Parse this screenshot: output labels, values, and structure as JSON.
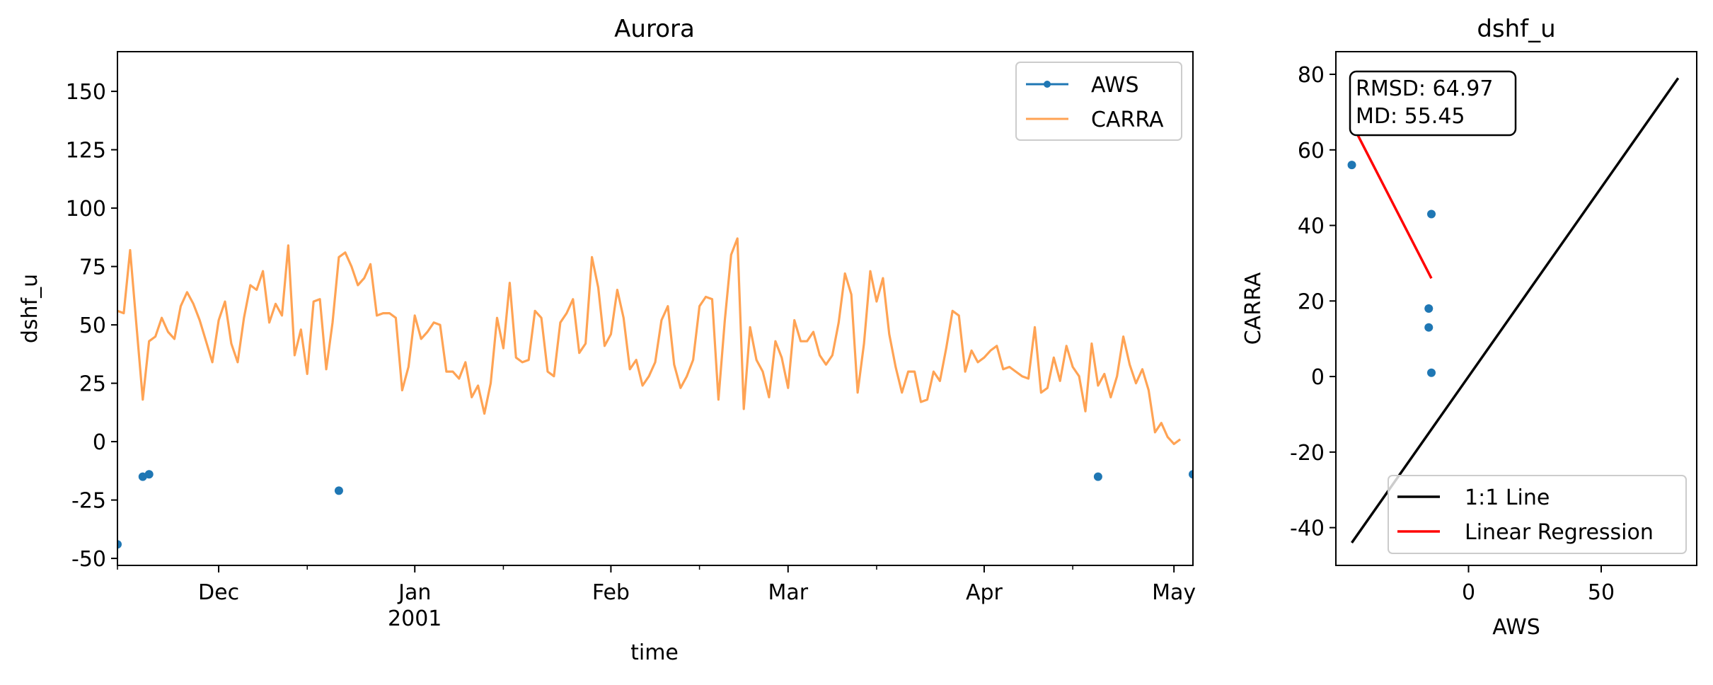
{
  "chart_data": [
    {
      "type": "line",
      "title": "Aurora",
      "xlabel": "time",
      "ylabel": "dshf_u",
      "ylim": [
        -53,
        167
      ],
      "xlim": [
        "2000-11-15",
        "2001-05-04"
      ],
      "x_ticks": [
        {
          "date": "2000-12-01",
          "label": "Dec",
          "sublabel": ""
        },
        {
          "date": "2001-01-01",
          "label": "Jan",
          "sublabel": "2001"
        },
        {
          "date": "2001-02-01",
          "label": "Feb",
          "sublabel": ""
        },
        {
          "date": "2001-03-01",
          "label": "Mar",
          "sublabel": ""
        },
        {
          "date": "2001-04-01",
          "label": "Apr",
          "sublabel": ""
        },
        {
          "date": "2001-05-01",
          "label": "May",
          "sublabel": ""
        }
      ],
      "y_ticks": [
        -50,
        -25,
        0,
        25,
        50,
        75,
        100,
        125,
        150
      ],
      "legend": {
        "position": "top-right",
        "entries": [
          "AWS",
          "CARRA"
        ]
      },
      "series": [
        {
          "name": "AWS",
          "style": "points",
          "color": "#1f77b4",
          "points": [
            [
              "2000-11-15",
              -44
            ],
            [
              "2000-11-19",
              -15
            ],
            [
              "2000-11-20",
              -14
            ],
            [
              "2000-12-20",
              -21
            ],
            [
              "2001-04-19",
              -15
            ],
            [
              "2001-05-04",
              -14
            ]
          ]
        },
        {
          "name": "CARRA",
          "style": "line",
          "color": "#ffa354",
          "start_date": "2000-11-15",
          "step_days": 1,
          "values": [
            56,
            55,
            82,
            50,
            18,
            43,
            45,
            53,
            47,
            44,
            58,
            64,
            59,
            52,
            43,
            34,
            52,
            60,
            42,
            34,
            53,
            67,
            65,
            73,
            51,
            59,
            54,
            84,
            37,
            48,
            29,
            60,
            61,
            31,
            51,
            79,
            81,
            75,
            67,
            70,
            76,
            54,
            55,
            55,
            53,
            22,
            32,
            54,
            44,
            47,
            51,
            50,
            30,
            30,
            27,
            34,
            19,
            24,
            12,
            25,
            53,
            40,
            68,
            36,
            34,
            35,
            56,
            53,
            30,
            28,
            51,
            55,
            61,
            38,
            42,
            79,
            66,
            41,
            46,
            65,
            53,
            31,
            35,
            24,
            28,
            34,
            52,
            58,
            33,
            23,
            28,
            35,
            58,
            62,
            61,
            18,
            52,
            80,
            87,
            14,
            49,
            35,
            30,
            19,
            43,
            36,
            23,
            52,
            43,
            43,
            47,
            37,
            33,
            37,
            51,
            72,
            63,
            21,
            42,
            73,
            60,
            70,
            46,
            32,
            21,
            30,
            30,
            17,
            18,
            30,
            26,
            40,
            56,
            54,
            30,
            39,
            34,
            36,
            39,
            41,
            31,
            32,
            30,
            28,
            27,
            49,
            21,
            23,
            36,
            26,
            41,
            32,
            28,
            13,
            42,
            24,
            29,
            19,
            28,
            45,
            33,
            25,
            31,
            22,
            4,
            8,
            2,
            -1,
            1
          ]
        }
      ]
    },
    {
      "type": "scatter",
      "title": "dshf_u",
      "xlabel": "AWS",
      "ylabel": "CARRA",
      "xlim": [
        -50,
        86
      ],
      "ylim": [
        -50,
        86
      ],
      "x_ticks": [
        0,
        50
      ],
      "y_ticks": [
        -40,
        -20,
        0,
        20,
        40,
        60,
        80
      ],
      "points": [
        [
          -44,
          56
        ],
        [
          -14,
          43
        ],
        [
          -15,
          18
        ],
        [
          -15,
          13
        ],
        [
          -14,
          1
        ]
      ],
      "point_color": "#1f77b4",
      "one_to_one": {
        "name": "1:1 Line",
        "from": [
          -44,
          -44
        ],
        "to": [
          79,
          79
        ],
        "color": "#000000"
      },
      "regression": {
        "name": "Linear Regression",
        "from": [
          -44,
          67
        ],
        "to": [
          -14,
          26
        ],
        "color": "#ff0000"
      },
      "stats": {
        "rmsd": "RMSD: 64.97",
        "md": "MD: 55.45"
      },
      "legend": {
        "position": "lower-right",
        "entries": [
          "1:1 Line",
          "Linear Regression"
        ]
      }
    }
  ]
}
